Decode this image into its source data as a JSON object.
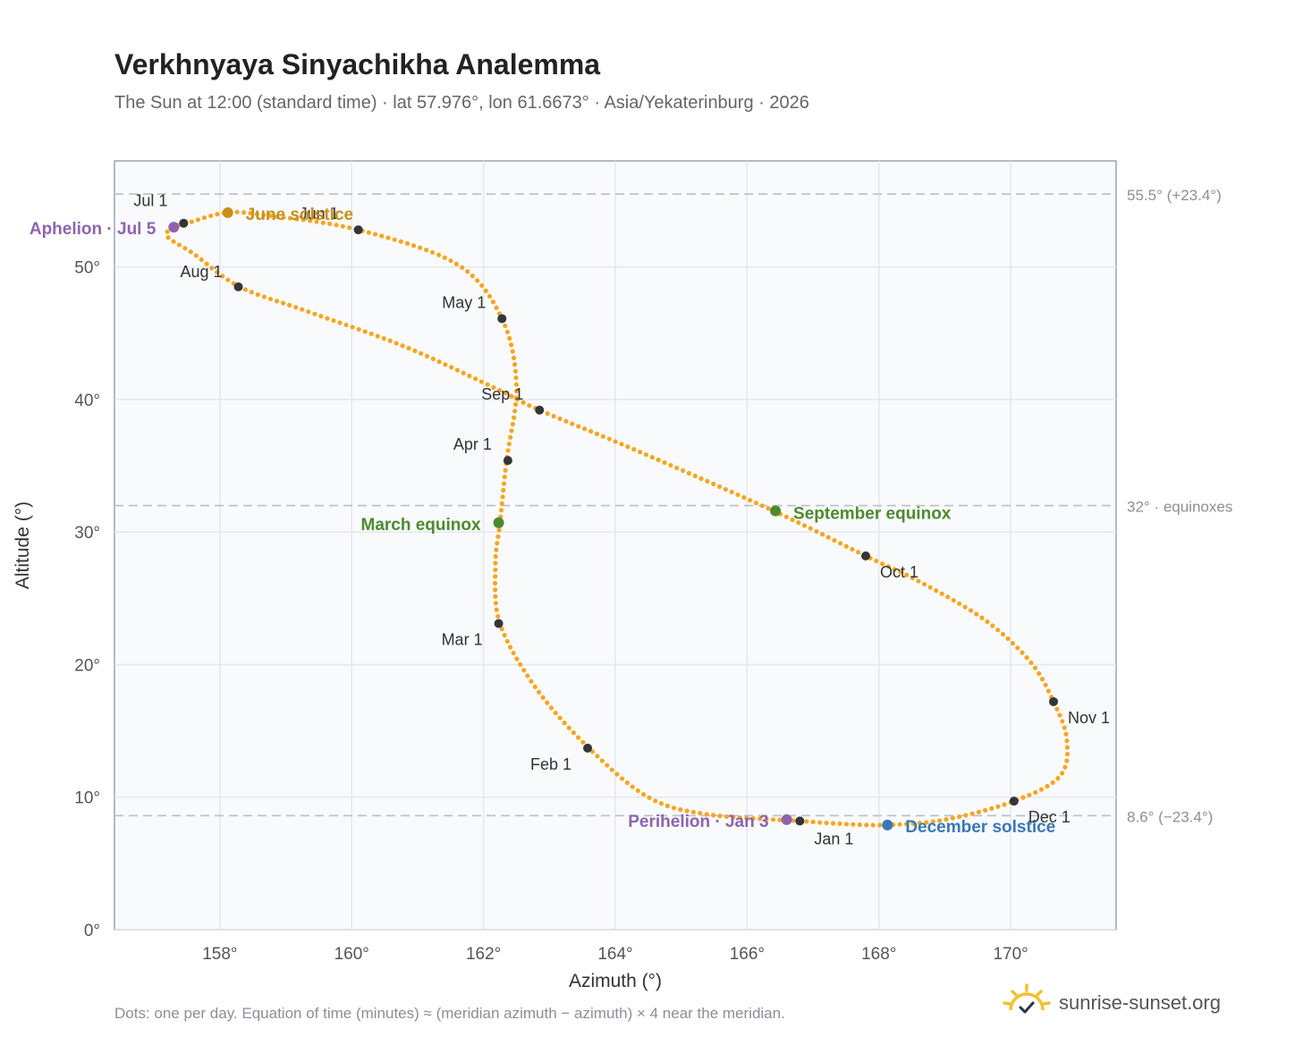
{
  "header": {
    "title": "Verkhnyaya Sinyachikha Analemma",
    "subtitle": "The Sun at 12:00 (standard time) · lat 57.976°, lon 61.6673° · Asia/Yekaterinburg · 2026"
  },
  "footer": {
    "note": "Dots: one per day. Equation of time (minutes) ≈ (meridian azimuth − azimuth) × 4 near the meridian.",
    "brand": "sunrise-sunset.org",
    "brand_icon": "sun-check-icon"
  },
  "colors": {
    "curve": "#f5a623",
    "month": "#33353d",
    "solstice_june": "#c8901a",
    "equinox": "#4d8a2f",
    "solstice_december": "#3a78b5",
    "apsis": "#8e63b0",
    "reference": "#b8bfc8",
    "plot_bg": "#f8fafc"
  },
  "chart_data": {
    "type": "scatter",
    "xlabel": "Azimuth (°)",
    "ylabel": "Altitude (°)",
    "xlim": [
      156.4,
      171.6
    ],
    "ylim": [
      0,
      58
    ],
    "xticks": [
      158,
      160,
      162,
      164,
      166,
      168,
      170
    ],
    "xtick_labels": [
      "158°",
      "160°",
      "162°",
      "164°",
      "166°",
      "168°",
      "170°"
    ],
    "yticks": [
      0,
      10,
      20,
      30,
      40,
      50
    ],
    "ytick_labels": [
      "0°",
      "10°",
      "20°",
      "30°",
      "40°",
      "50°"
    ],
    "grid": true,
    "curve_path": [
      [
        166.8,
        8.2
      ],
      [
        165.4,
        8.7
      ],
      [
        164.5,
        10.0
      ],
      [
        163.6,
        13.7
      ],
      [
        162.8,
        18.2
      ],
      [
        162.25,
        23.1
      ],
      [
        162.18,
        27.5
      ],
      [
        162.25,
        30.7
      ],
      [
        162.35,
        35.4
      ],
      [
        162.5,
        41.0
      ],
      [
        162.28,
        46.1
      ],
      [
        161.6,
        50.2
      ],
      [
        160.1,
        52.8
      ],
      [
        158.7,
        53.9
      ],
      [
        158.1,
        54.1
      ],
      [
        157.5,
        53.3
      ],
      [
        157.3,
        53.0
      ],
      [
        157.2,
        52.3
      ],
      [
        157.6,
        51.0
      ],
      [
        158.3,
        48.5
      ],
      [
        159.3,
        46.7
      ],
      [
        160.8,
        44.0
      ],
      [
        162.2,
        40.8
      ],
      [
        162.85,
        39.2
      ],
      [
        164.3,
        36.2
      ],
      [
        166.4,
        31.6
      ],
      [
        167.8,
        28.2
      ],
      [
        168.6,
        26.3
      ],
      [
        169.6,
        23.4
      ],
      [
        170.3,
        20.2
      ],
      [
        170.65,
        17.2
      ],
      [
        170.85,
        14.4
      ],
      [
        170.75,
        11.6
      ],
      [
        170.05,
        9.7
      ],
      [
        169.0,
        8.3
      ],
      [
        168.1,
        7.9
      ],
      [
        167.4,
        8.0
      ],
      [
        166.8,
        8.2
      ]
    ],
    "months": [
      {
        "label": "Jan 1",
        "x": 166.8,
        "y": 8.2
      },
      {
        "label": "Feb 1",
        "x": 163.58,
        "y": 13.7
      },
      {
        "label": "Mar 1",
        "x": 162.23,
        "y": 23.1
      },
      {
        "label": "Apr 1",
        "x": 162.37,
        "y": 35.4
      },
      {
        "label": "May 1",
        "x": 162.28,
        "y": 46.1
      },
      {
        "label": "Jun 1",
        "x": 160.1,
        "y": 52.8
      },
      {
        "label": "Jul 1",
        "x": 157.45,
        "y": 53.3
      },
      {
        "label": "Aug 1",
        "x": 158.28,
        "y": 48.5
      },
      {
        "label": "Sep 1",
        "x": 162.85,
        "y": 39.2
      },
      {
        "label": "Oct 1",
        "x": 167.8,
        "y": 28.2
      },
      {
        "label": "Nov 1",
        "x": 170.65,
        "y": 17.2
      },
      {
        "label": "Dec 1",
        "x": 170.05,
        "y": 9.7
      }
    ],
    "events": [
      {
        "label": "June solstice",
        "x": 158.12,
        "y": 54.1,
        "color_key": "solstice_june"
      },
      {
        "label": "March equinox",
        "x": 162.23,
        "y": 30.7,
        "color_key": "equinox"
      },
      {
        "label": "September equinox",
        "x": 166.43,
        "y": 31.6,
        "color_key": "equinox"
      },
      {
        "label": "December solstice",
        "x": 168.13,
        "y": 7.9,
        "color_key": "solstice_december"
      },
      {
        "label": "Aphelion · Jul 5",
        "x": 157.3,
        "y": 53.0,
        "color_key": "apsis"
      },
      {
        "label": "Perihelion · Jan 3",
        "x": 166.6,
        "y": 8.3,
        "color_key": "apsis"
      }
    ],
    "reference_lines": [
      {
        "y": 55.5,
        "label": "55.5° (+23.4°)"
      },
      {
        "y": 32.0,
        "label": "32° · equinoxes"
      },
      {
        "y": 8.6,
        "label": "8.6° (−23.4°)"
      }
    ]
  }
}
